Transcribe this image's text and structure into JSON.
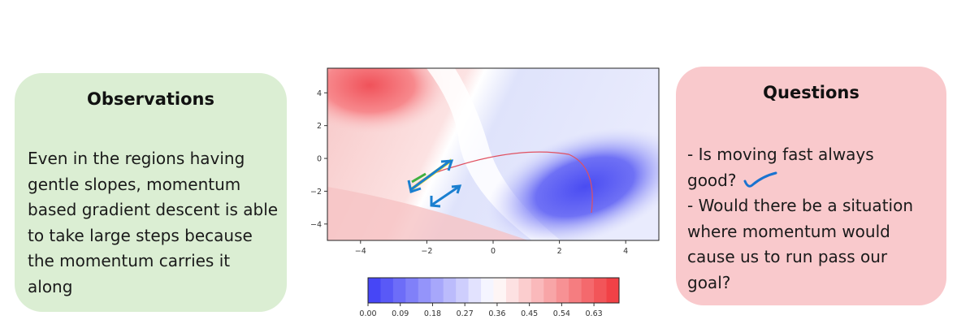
{
  "observations": {
    "title": "Observations",
    "body": "Even in the regions having gentle slopes, momentum based gradient descent is able to take large steps because the momentum carries it along"
  },
  "questions": {
    "title": "Questions",
    "lines": [
      "- Is moving fast always good?",
      "- Would there be a situation where momentum would cause us to run pass our goal?"
    ]
  },
  "chart_data": [
    {
      "type": "heatmap",
      "x_ticks": [
        "−4",
        "−2",
        "0",
        "2",
        "4"
      ],
      "x_tick_values": [
        -4,
        -2,
        0,
        2,
        4
      ],
      "y_ticks": [
        "4",
        "2",
        "0",
        "−2",
        "−4"
      ],
      "y_tick_values": [
        4,
        2,
        0,
        -2,
        -4
      ],
      "xlim": [
        -5,
        5
      ],
      "ylim": [
        -5,
        5.5
      ],
      "grid": false,
      "colormap": "bwr",
      "trajectory_color": "#e05060",
      "annotation_colors": [
        "#1a7fd0",
        "#f0e020",
        "#40b040"
      ]
    },
    {
      "type": "colorbar",
      "tick_labels": [
        "0.00",
        "0.09",
        "0.18",
        "0.27",
        "0.36",
        "0.45",
        "0.54",
        "0.63"
      ],
      "tick_values": [
        0.0,
        0.09,
        0.18,
        0.27,
        0.36,
        0.45,
        0.54,
        0.63
      ],
      "range": [
        0.0,
        0.7
      ],
      "colormap": "bwr"
    }
  ]
}
